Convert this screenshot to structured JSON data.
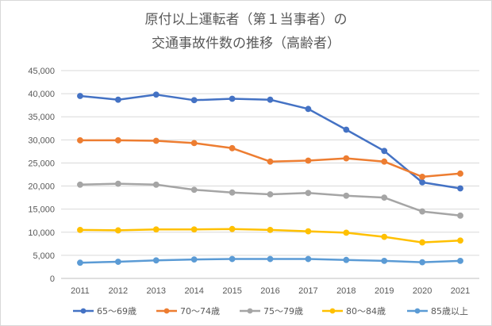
{
  "chart_data": {
    "type": "line",
    "title_lines": [
      "原付以上運転者（第１当事者）の",
      "交通事故件数の推移（高齢者）"
    ],
    "xlabel": "",
    "ylabel": "",
    "ylim": [
      0,
      45000
    ],
    "yticks": [
      "0",
      "5,000",
      "10,000",
      "15,000",
      "20,000",
      "25,000",
      "30,000",
      "35,000",
      "40,000",
      "45,000"
    ],
    "ytick_values": [
      0,
      5000,
      10000,
      15000,
      20000,
      25000,
      30000,
      35000,
      40000,
      45000
    ],
    "categories": [
      "2011",
      "2012",
      "2013",
      "2014",
      "2015",
      "2016",
      "2017",
      "2018",
      "2019",
      "2020",
      "2021"
    ],
    "grid": "horizontal",
    "legend": "bottom",
    "series": [
      {
        "name": "65～69歳",
        "color": "#4472C4",
        "values": [
          39500,
          38700,
          39800,
          38600,
          38900,
          38700,
          36700,
          32200,
          27600,
          20800,
          19500
        ]
      },
      {
        "name": "70～74歳",
        "color": "#ED7D31",
        "values": [
          29900,
          29900,
          29800,
          29300,
          28200,
          25300,
          25500,
          26000,
          25300,
          22000,
          22700
        ]
      },
      {
        "name": "75～79歳",
        "color": "#A5A5A5",
        "values": [
          20300,
          20500,
          20300,
          19200,
          18600,
          18200,
          18500,
          17900,
          17500,
          14500,
          13600
        ]
      },
      {
        "name": "80～84歳",
        "color": "#FFC000",
        "values": [
          10500,
          10400,
          10600,
          10600,
          10700,
          10500,
          10200,
          9900,
          9000,
          7800,
          8200
        ]
      },
      {
        "name": "85歳以上",
        "color": "#5B9BD5",
        "values": [
          3400,
          3600,
          3900,
          4100,
          4200,
          4200,
          4200,
          4000,
          3800,
          3500,
          3800
        ]
      }
    ]
  }
}
